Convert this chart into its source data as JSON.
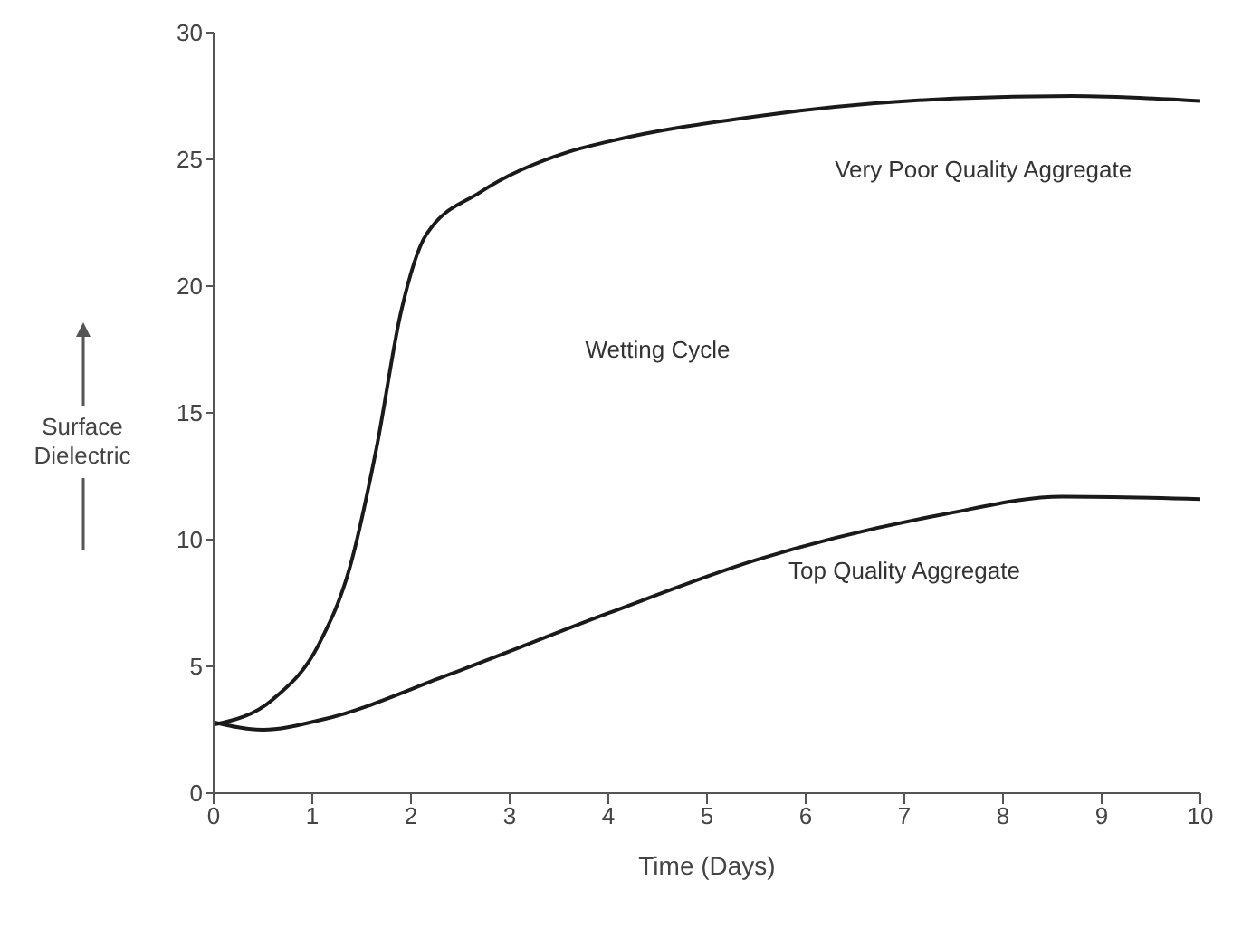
{
  "chart_data": {
    "type": "line",
    "xlabel": "Time (Days)",
    "ylabel": "Surface Dielectric",
    "annotations": [
      "Wetting Cycle"
    ],
    "xlim": [
      0,
      10
    ],
    "xticks": [
      0,
      1,
      2,
      3,
      4,
      5,
      6,
      7,
      8,
      9,
      10
    ],
    "ylim": [
      0,
      30
    ],
    "yticks": [
      0,
      5,
      10,
      15,
      20,
      25,
      30
    ],
    "grid": false,
    "legend": false,
    "marker": "none",
    "line_style": "solid",
    "series": [
      {
        "name": "Very Poor Quality Aggregate",
        "color": "#1a1a1a",
        "x": [
          0,
          0.6,
          1.07,
          1.38,
          1.65,
          1.9,
          2.15,
          2.7,
          3.6,
          4.0,
          5.5,
          7.5,
          8.7,
          10
        ],
        "values": [
          2.7,
          3.7,
          5.9,
          8.9,
          13.6,
          19.0,
          22.0,
          23.7,
          25.3,
          25.7,
          26.7,
          27.4,
          27.5,
          27.3
        ]
      },
      {
        "name": "Top Quality Aggregate",
        "color": "#1a1a1a",
        "x": [
          0,
          0.5,
          1.1,
          2.4,
          4.0,
          5.5,
          7.4,
          8.6,
          10
        ],
        "values": [
          2.8,
          2.5,
          2.9,
          4.7,
          7.1,
          9.2,
          11.0,
          11.7,
          11.6
        ]
      }
    ]
  }
}
